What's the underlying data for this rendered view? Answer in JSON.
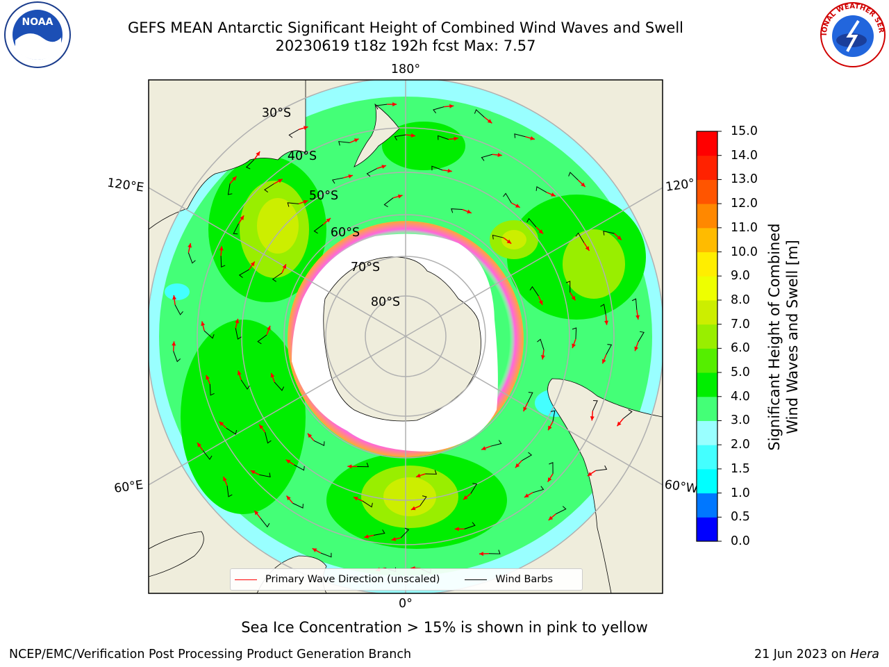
{
  "title": {
    "line1": "GEFS MEAN Antarctic Significant Height of Combined Wind Waves and Swell",
    "line2": "20230619 t18z 192h fcst   Max: 7.57"
  },
  "map": {
    "projection": "south polar stereographic",
    "longitude_labels": {
      "top": "180°",
      "bottom": "0°",
      "left_upper": "120°E",
      "left_lower": "60°E",
      "right_upper": "120°",
      "right_lower": "60°W"
    },
    "latitude_labels": [
      "30°S",
      "40°S",
      "50°S",
      "60°S",
      "70°S",
      "80°S"
    ],
    "colors": {
      "land": "#efeddc",
      "ice_shelf": "#ffffff",
      "sea_ice": "#ff33cc",
      "wave_arrow": "#ff0000",
      "wind_barb": "#000000",
      "gridline": "#b0b0b0"
    }
  },
  "legend": {
    "primary_wave": "Primary Wave Direction (unscaled)",
    "wind_barbs": "Wind Barbs"
  },
  "colorbar": {
    "label_line1": "Significant Height of Combined",
    "label_line2": "Wind Waves and Swell [m]",
    "ticks": [
      "0.0",
      "0.5",
      "1.0",
      "1.5",
      "2.0",
      "3.0",
      "4.0",
      "5.0",
      "6.0",
      "7.0",
      "8.0",
      "9.0",
      "10.0",
      "11.0",
      "12.0",
      "13.0",
      "14.0",
      "15.0"
    ],
    "colors": [
      "#0000ff",
      "#0077ff",
      "#00ffff",
      "#44ffff",
      "#99ffff",
      "#44ff77",
      "#00ee00",
      "#55ee00",
      "#99ee00",
      "#ccee00",
      "#eeff00",
      "#ffee00",
      "#ffbb00",
      "#ff8800",
      "#ff5500",
      "#ff2200",
      "#ff0000"
    ]
  },
  "note": "Sea Ice Concentration > 15% is shown in pink to yellow",
  "footer": {
    "left": "NCEP/EMC/Verification Post Processing Product Generation Branch",
    "date": "21 Jun 2023 on ",
    "host": "Hera"
  },
  "logos": {
    "noaa": "NOAA",
    "nws": "NATIONAL WEATHER SERVICE"
  }
}
